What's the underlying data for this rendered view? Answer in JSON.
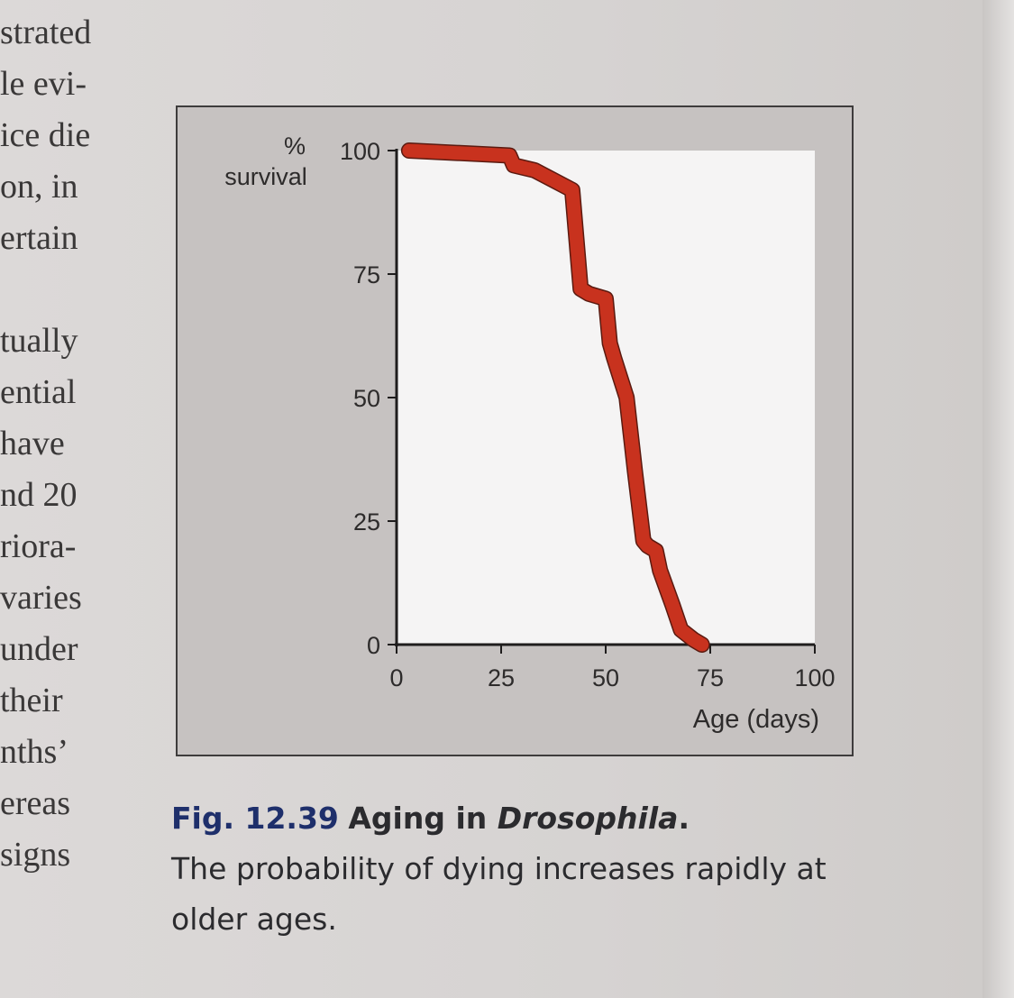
{
  "left_column_lines": [
    "strated",
    "le evi-",
    "ice die",
    "on, in",
    "ertain",
    "",
    "tually",
    "ential",
    "have",
    "nd 20",
    "riora-",
    "varies",
    "under",
    "their",
    "nths’",
    "ereas",
    "signs"
  ],
  "caption": {
    "fig_number": "Fig. 12.39",
    "title_prefix": "Aging in ",
    "title_italic": "Drosophila",
    "title_suffix": ".",
    "body": "The probability of dying increases rapidly at older ages."
  },
  "chart_data": {
    "type": "line",
    "ylabel": "% survival",
    "xlabel": "Age (days)",
    "xlim": [
      0,
      100
    ],
    "ylim": [
      0,
      100
    ],
    "xticks": [
      0,
      25,
      50,
      75,
      100
    ],
    "yticks": [
      0,
      25,
      50,
      75,
      100
    ],
    "series": [
      {
        "color": "#c8321e",
        "x": [
          3,
          27,
          28,
          33,
          42,
          44,
          46,
          50,
          51,
          52,
          55,
          57,
          59,
          60,
          62,
          63,
          66,
          68,
          71,
          73
        ],
        "y": [
          100,
          99,
          97,
          96,
          92,
          72,
          71,
          70,
          61,
          58,
          50,
          35,
          21,
          20,
          19,
          15,
          8,
          3,
          1,
          0
        ]
      }
    ],
    "grid": false,
    "legend": "none",
    "line_color": "#c8321e"
  }
}
